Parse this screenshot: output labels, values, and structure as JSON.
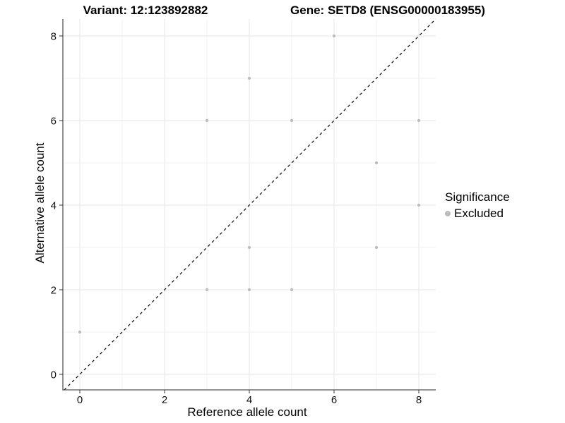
{
  "chart_data": {
    "type": "scatter",
    "title_left": "Variant: 12:123892882",
    "title_right": "Gene: SETD8 (ENSG00000183955)",
    "xlabel": "Reference allele count",
    "ylabel": "Alternative allele count",
    "xlim": [
      -0.4,
      8.4
    ],
    "ylim": [
      -0.37,
      8.4
    ],
    "xticks": [
      0,
      2,
      4,
      6,
      8
    ],
    "yticks": [
      0,
      2,
      4,
      6,
      8
    ],
    "grid_x": [
      0,
      1,
      2,
      3,
      4,
      5,
      6,
      7,
      8
    ],
    "grid_y": [
      0,
      1,
      2,
      3,
      4,
      5,
      6,
      7,
      8
    ],
    "identity_line": {
      "style": "dashed",
      "equation": "y = x",
      "color": "#000000"
    },
    "series": [
      {
        "name": "Excluded",
        "color": "#bcbcbc",
        "points": [
          [
            0,
            1
          ],
          [
            3,
            2
          ],
          [
            4,
            2
          ],
          [
            5,
            2
          ],
          [
            4,
            3
          ],
          [
            7,
            3
          ],
          [
            8,
            4
          ],
          [
            7,
            5
          ],
          [
            3,
            6
          ],
          [
            5,
            6
          ],
          [
            8,
            6
          ],
          [
            4,
            7
          ],
          [
            6,
            8
          ]
        ]
      }
    ],
    "legend": {
      "title": "Significance",
      "position": "right",
      "items": [
        {
          "label": "Excluded",
          "color": "#bcbcbc"
        }
      ]
    }
  },
  "colors": {
    "background": "#ffffff",
    "grid_major": "#e6e6e6",
    "grid_minor": "#f0f0f0",
    "axis_line": "#555555",
    "tick_mark": "#333333",
    "tick_label": "#111111",
    "point": "#bcbcbc",
    "identity_line": "#000000"
  }
}
